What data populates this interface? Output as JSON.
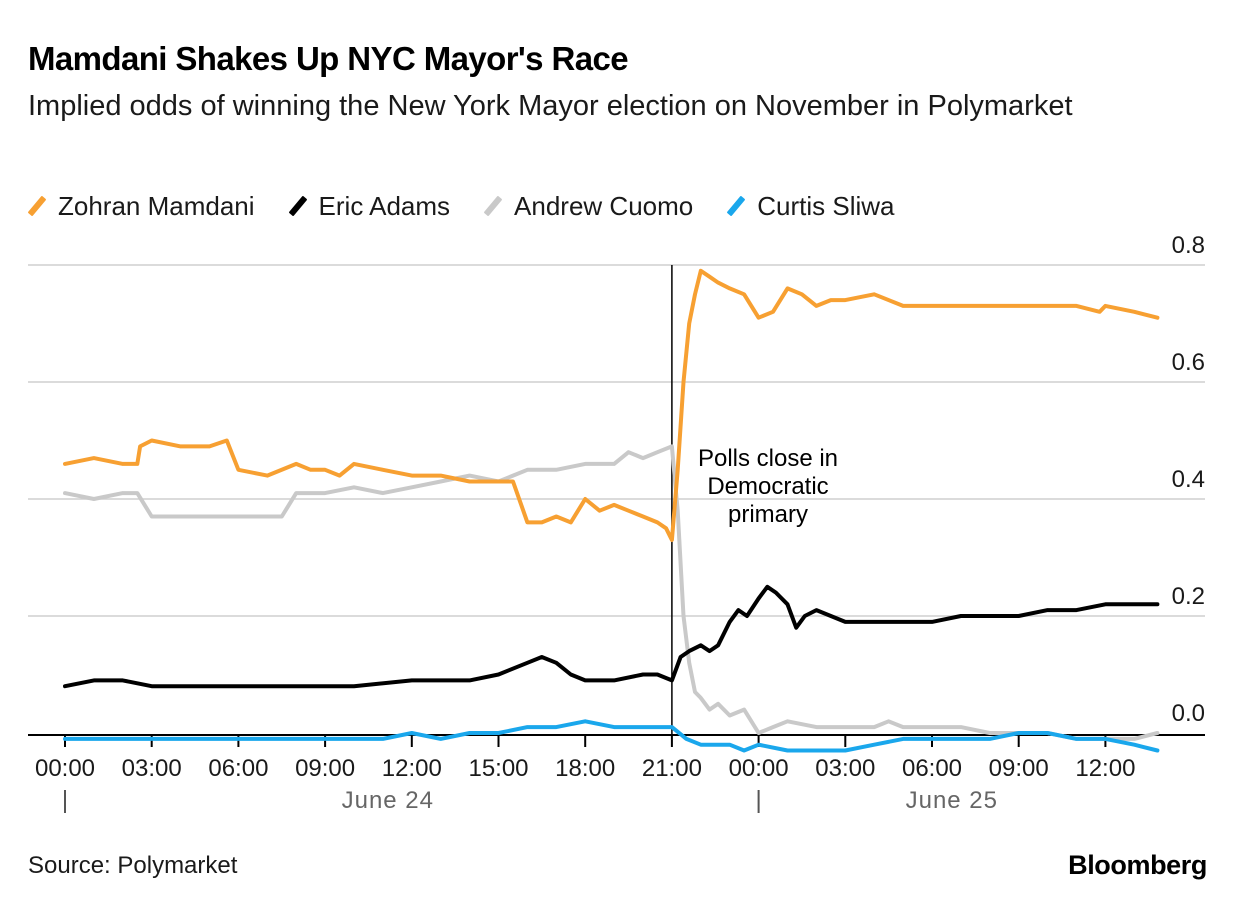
{
  "header": {
    "title": "Mamdani Shakes Up NYC Mayor's Race",
    "subtitle": "Implied odds of winning the New York Mayor election on November in Polymarket"
  },
  "footer": {
    "source": "Source: Polymarket",
    "brand": "Bloomberg"
  },
  "chart_data": {
    "type": "line",
    "title": "Mamdani Shakes Up NYC Mayor's Race",
    "subtitle": "Implied odds of winning the New York Mayor election on November in Polymarket",
    "xlabel": "",
    "ylabel": "",
    "x_unit": "hours since 00:00 June 24",
    "xlim": [
      -0.9,
      39.5
    ],
    "ylim": [
      -0.04,
      0.8
    ],
    "y_ticks": [
      0.0,
      0.2,
      0.4,
      0.6,
      0.8
    ],
    "y_tick_labels": [
      "0.0",
      "0.2",
      "0.4",
      "0.6",
      "0.8"
    ],
    "x_ticks": [
      0,
      3,
      6,
      9,
      12,
      15,
      18,
      21,
      24,
      27,
      30,
      33,
      36
    ],
    "x_tick_labels": [
      "00:00",
      "03:00",
      "06:00",
      "09:00",
      "12:00",
      "15:00",
      "18:00",
      "21:00",
      "00:00",
      "03:00",
      "06:00",
      "09:00",
      "12:00"
    ],
    "date_labels": [
      {
        "x": 0,
        "label": "June 24"
      },
      {
        "x": 24,
        "label": "June 25"
      }
    ],
    "grid": true,
    "legend_position": "top-left",
    "annotation": {
      "x": 21,
      "lines": [
        "Polls close in",
        "Democratic",
        "primary"
      ]
    },
    "series": [
      {
        "name": "Zohran Mamdani",
        "color": "#f7a032",
        "x": [
          0,
          1,
          2,
          2.5,
          2.6,
          3,
          4,
          5,
          5.6,
          6,
          7,
          8,
          8.5,
          9,
          9.5,
          10,
          11,
          12,
          13,
          14,
          15,
          15.5,
          16,
          16.5,
          17,
          17.5,
          18,
          18.5,
          19,
          19.5,
          20,
          20.5,
          20.8,
          21,
          21.2,
          21.4,
          21.6,
          21.8,
          22,
          22.3,
          22.6,
          23,
          23.5,
          24,
          24.5,
          25,
          25.5,
          26,
          26.5,
          27,
          28,
          29,
          30,
          31,
          32,
          33,
          34,
          35,
          35.8,
          36,
          37,
          37.8
        ],
        "values": [
          0.46,
          0.47,
          0.46,
          0.46,
          0.49,
          0.5,
          0.49,
          0.49,
          0.5,
          0.45,
          0.44,
          0.46,
          0.45,
          0.45,
          0.44,
          0.46,
          0.45,
          0.44,
          0.44,
          0.43,
          0.43,
          0.43,
          0.36,
          0.36,
          0.37,
          0.36,
          0.4,
          0.38,
          0.39,
          0.38,
          0.37,
          0.36,
          0.35,
          0.33,
          0.45,
          0.6,
          0.7,
          0.75,
          0.79,
          0.78,
          0.77,
          0.76,
          0.75,
          0.71,
          0.72,
          0.76,
          0.75,
          0.73,
          0.74,
          0.74,
          0.75,
          0.73,
          0.73,
          0.73,
          0.73,
          0.73,
          0.73,
          0.73,
          0.72,
          0.73,
          0.72,
          0.71
        ]
      },
      {
        "name": "Eric Adams",
        "color": "#000000",
        "x": [
          0,
          1,
          2,
          3,
          4,
          6,
          8,
          10,
          12,
          14,
          15,
          16,
          16.5,
          17,
          17.5,
          18,
          19,
          20,
          20.5,
          21,
          21.3,
          21.6,
          22,
          22.3,
          22.6,
          23,
          23.3,
          23.6,
          24,
          24.3,
          24.6,
          25,
          25.3,
          25.6,
          26,
          27,
          28,
          29,
          30,
          31,
          32,
          33,
          34,
          35,
          36,
          37,
          37.8
        ],
        "values": [
          0.08,
          0.09,
          0.09,
          0.08,
          0.08,
          0.08,
          0.08,
          0.08,
          0.09,
          0.09,
          0.1,
          0.12,
          0.13,
          0.12,
          0.1,
          0.09,
          0.09,
          0.1,
          0.1,
          0.09,
          0.13,
          0.14,
          0.15,
          0.14,
          0.15,
          0.19,
          0.21,
          0.2,
          0.23,
          0.25,
          0.24,
          0.22,
          0.18,
          0.2,
          0.21,
          0.19,
          0.19,
          0.19,
          0.19,
          0.2,
          0.2,
          0.2,
          0.21,
          0.21,
          0.22,
          0.22,
          0.22
        ]
      },
      {
        "name": "Andrew Cuomo",
        "color": "#c9c9c9",
        "x": [
          0,
          1,
          2,
          2.5,
          3,
          4,
          5,
          6,
          7,
          7.5,
          8,
          9,
          10,
          11,
          12,
          13,
          14,
          15,
          15.5,
          16,
          17,
          18,
          19,
          19.5,
          20,
          20.5,
          21,
          21.2,
          21.4,
          21.6,
          21.8,
          22,
          22.3,
          22.6,
          23,
          23.5,
          24,
          24.5,
          25,
          26,
          27,
          28,
          28.5,
          29,
          30,
          31,
          32,
          33,
          34,
          35,
          36,
          37,
          37.8
        ],
        "values": [
          0.41,
          0.4,
          0.41,
          0.41,
          0.37,
          0.37,
          0.37,
          0.37,
          0.37,
          0.37,
          0.41,
          0.41,
          0.42,
          0.41,
          0.42,
          0.43,
          0.44,
          0.43,
          0.44,
          0.45,
          0.45,
          0.46,
          0.46,
          0.48,
          0.47,
          0.48,
          0.49,
          0.38,
          0.2,
          0.12,
          0.07,
          0.06,
          0.04,
          0.05,
          0.03,
          0.04,
          0.0,
          0.01,
          0.02,
          0.01,
          0.01,
          0.01,
          0.02,
          0.01,
          0.01,
          0.01,
          0.0,
          0.0,
          0.0,
          -0.01,
          -0.01,
          -0.01,
          0.0
        ]
      },
      {
        "name": "Curtis Sliwa",
        "color": "#1aa7ec",
        "x": [
          0,
          2,
          4,
          6,
          8,
          10,
          11,
          12,
          13,
          14,
          15,
          16,
          17,
          18,
          19,
          20,
          21,
          21.5,
          22,
          22.5,
          23,
          23.5,
          24,
          25,
          26,
          27,
          28,
          29,
          30,
          31,
          32,
          33,
          34,
          35,
          36,
          37,
          37.8
        ],
        "values": [
          -0.01,
          -0.01,
          -0.01,
          -0.01,
          -0.01,
          -0.01,
          -0.01,
          0.0,
          -0.01,
          0.0,
          0.0,
          0.01,
          0.01,
          0.02,
          0.01,
          0.01,
          0.01,
          -0.01,
          -0.02,
          -0.02,
          -0.02,
          -0.03,
          -0.02,
          -0.03,
          -0.03,
          -0.03,
          -0.02,
          -0.01,
          -0.01,
          -0.01,
          -0.01,
          0.0,
          0.0,
          -0.01,
          -0.01,
          -0.02,
          -0.03
        ]
      }
    ]
  }
}
